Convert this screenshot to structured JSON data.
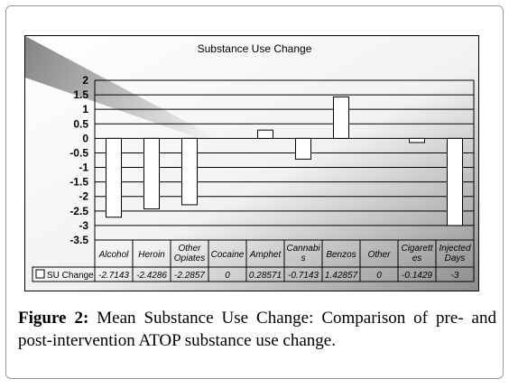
{
  "chart_data": {
    "type": "bar",
    "title": "Substance Use Change",
    "categories": [
      "Alcohol",
      "Heroin",
      "Other\nOpiates",
      "Cocaine",
      "Amphet",
      "Cannabi\ns",
      "Benzos",
      "Other",
      "Cigarett\nes",
      "Injected\nDays"
    ],
    "series": [
      {
        "name": "SU Change",
        "values": [
          -2.7143,
          -2.4286,
          -2.2857,
          0,
          0.28571,
          -0.7143,
          1.42857,
          0,
          -0.1429,
          -3
        ],
        "labels": [
          "-2.7143",
          "-2.4286",
          "-2.2857",
          "0",
          "0.28571",
          "-0.7143",
          "1.42857",
          "0",
          "-0.1429",
          "-3"
        ]
      }
    ],
    "ylim": [
      -3.5,
      2
    ],
    "yticks": [
      "2",
      "1.5",
      "1",
      "0.5",
      "0",
      "-0.5",
      "-1",
      "-1.5",
      "-2",
      "-2.5",
      "-3",
      "-3.5"
    ],
    "ytick_values": [
      2,
      1.5,
      1,
      0.5,
      0,
      -0.5,
      -1,
      -1.5,
      -2,
      -2.5,
      -3,
      -3.5
    ],
    "grid": true,
    "legend": "data-table",
    "colors": {
      "bar_fill": "#ffffff",
      "bar_stroke": "#000000",
      "grid": "#000000"
    }
  },
  "caption": {
    "label": "Figure 2:",
    "text": " Mean Substance Use Change: Comparison of pre- and post-intervention ATOP substance use change."
  }
}
